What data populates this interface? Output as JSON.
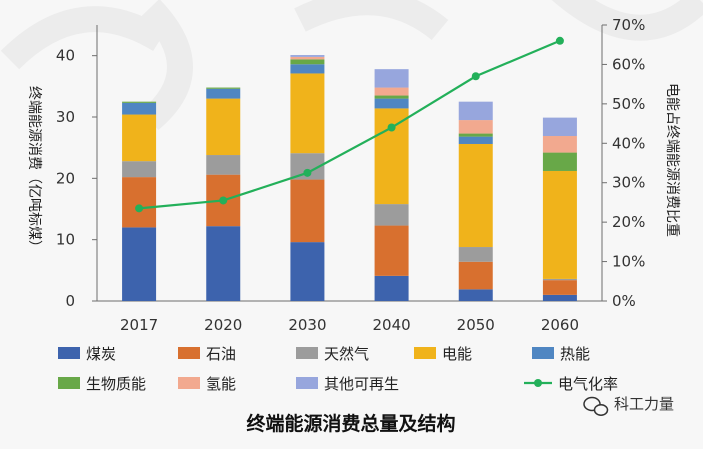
{
  "chart_data": {
    "type": "bar",
    "stacked": true,
    "caption": "终端能源消费总量及结构",
    "categories": [
      "2017",
      "2020",
      "2030",
      "2040",
      "2050",
      "2060"
    ],
    "ylabel": "终端能源消费（亿吨标煤）",
    "ylabel_right": "电能占终端能源消费比重",
    "ylim": [
      0,
      45
    ],
    "yticks": [
      0,
      10,
      20,
      30,
      40
    ],
    "ylim_right": [
      0,
      70
    ],
    "yticks_right": [
      "0%",
      "10%",
      "20%",
      "30%",
      "40%",
      "50%",
      "60%",
      "70%"
    ],
    "grid": false,
    "legend_position": "bottom",
    "series": [
      {
        "name": "煤炭",
        "color": "#3d63ad",
        "values": [
          12,
          12.2,
          9.6,
          4.1,
          1.9,
          1.0
        ]
      },
      {
        "name": "石油",
        "color": "#d8702f",
        "values": [
          8.2,
          8.4,
          10.2,
          8.2,
          4.5,
          2.4
        ]
      },
      {
        "name": "天然气",
        "color": "#9c9c9c",
        "values": [
          2.6,
          3.2,
          4.3,
          3.5,
          2.4,
          0.2
        ]
      },
      {
        "name": "电能",
        "color": "#f0b31b",
        "values": [
          7.6,
          9.2,
          13.0,
          15.6,
          16.8,
          17.6
        ]
      },
      {
        "name": "热能",
        "color": "#4f86c2",
        "values": [
          1.9,
          1.6,
          1.5,
          1.6,
          1.2,
          0
        ]
      },
      {
        "name": "生物质能",
        "color": "#68a848",
        "values": [
          0.2,
          0.2,
          0.8,
          0.5,
          0.5,
          3.0
        ]
      },
      {
        "name": "氢能",
        "color": "#f2a98f",
        "values": [
          0,
          0,
          0.4,
          1.3,
          2.2,
          2.7
        ]
      },
      {
        "name": "其他可再生",
        "color": "#97a6dd",
        "values": [
          0,
          0,
          0.3,
          3.0,
          3.0,
          3.0
        ]
      }
    ],
    "line_series": {
      "name": "电气化率",
      "color": "#23b05a",
      "axis": "right",
      "values": [
        23.5,
        25.5,
        32.5,
        44,
        57,
        66
      ]
    }
  },
  "watermark": {
    "account": "科工力量"
  }
}
